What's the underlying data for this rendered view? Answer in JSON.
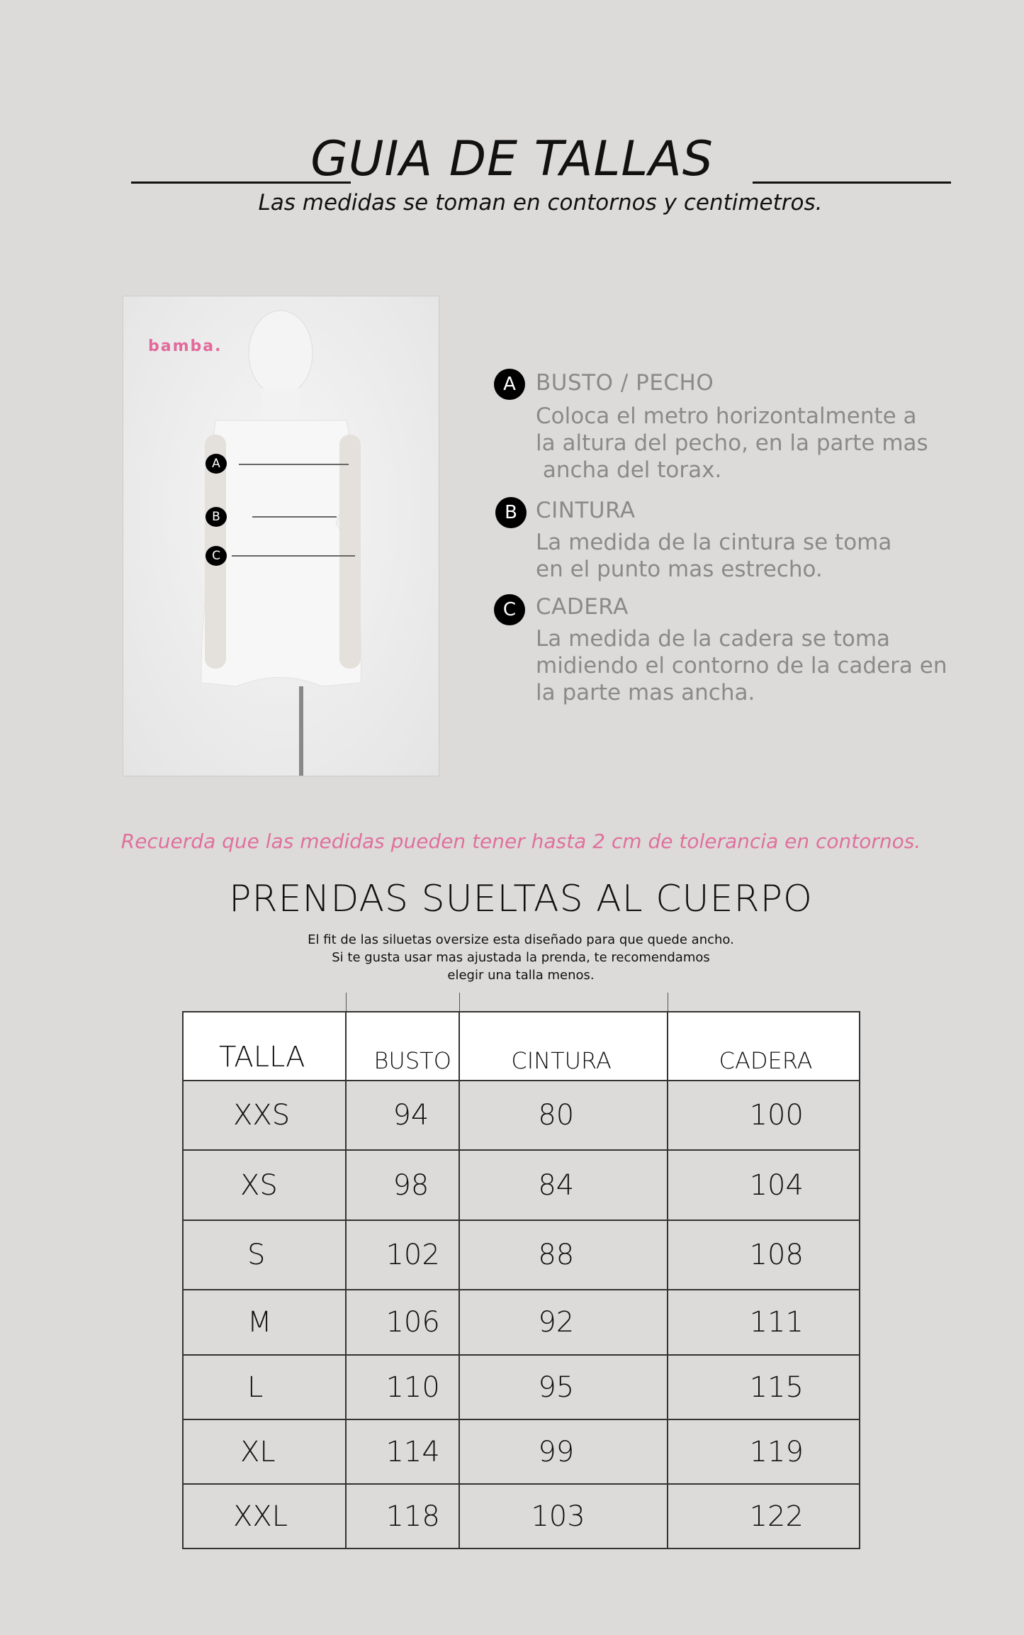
{
  "header": {
    "title": "GUIA DE TALLAS",
    "subtitle": "Las medidas se toman en contornos y centimetros."
  },
  "image": {
    "logo": "bamba.",
    "markers": [
      "A",
      "B",
      "C"
    ]
  },
  "legend": [
    {
      "letter": "A",
      "title": "BUSTO / PECHO",
      "body": "Coloca el metro horizontalmente a\nla altura del pecho, en la parte mas\n ancha del torax."
    },
    {
      "letter": "B",
      "title": "CINTURA",
      "body": "La medida de la cintura se toma\nen el punto mas estrecho."
    },
    {
      "letter": "C",
      "title": "CADERA",
      "body": "La medida de la cadera se toma\nmidiendo el contorno de la cadera en\nla parte mas ancha."
    }
  ],
  "note": "Recuerda que las medidas pueden tener hasta 2 cm de tolerancia en contornos.",
  "section": {
    "title": "PRENDAS SUELTAS AL CUERPO",
    "lines": [
      "El fit de las siluetas oversize esta diseñado para que quede ancho.",
      "Si te gusta usar mas ajustada la prenda, te recomendamos",
      "elegir una talla menos."
    ]
  },
  "table": {
    "headers": [
      "TALLA",
      "BUSTO",
      "CINTURA",
      "CADERA"
    ],
    "rows": [
      [
        "XXS",
        "94",
        "80",
        "100"
      ],
      [
        "XS",
        "98",
        "84",
        "104"
      ],
      [
        "S",
        "102",
        "88",
        "108"
      ],
      [
        "M",
        "106",
        "92",
        "111"
      ],
      [
        "L",
        "110",
        "95",
        "115"
      ],
      [
        "XL",
        "114",
        "99",
        "119"
      ],
      [
        "XXL",
        "118",
        "103",
        "122"
      ]
    ]
  },
  "colors": {
    "accent": "#e0709c",
    "background": "#dcdbd9"
  }
}
